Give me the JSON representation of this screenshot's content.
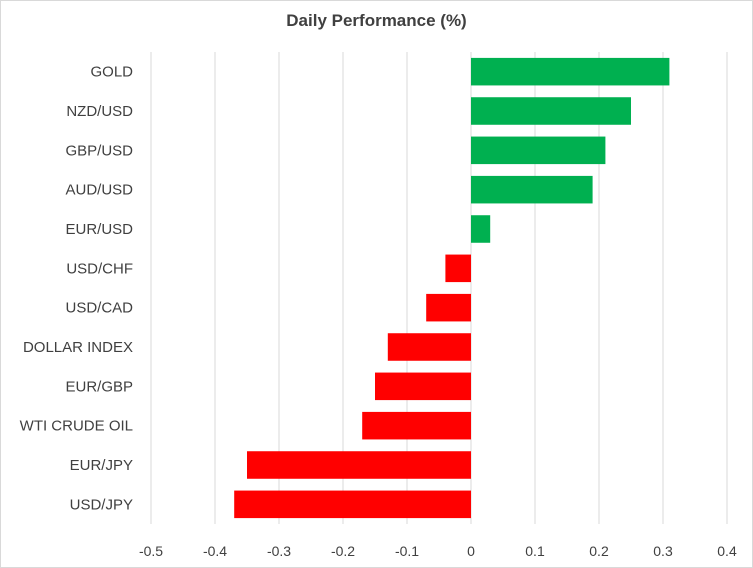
{
  "chart_data": {
    "type": "bar",
    "orientation": "horizontal",
    "title": "Daily Performance (%)",
    "xlabel": "",
    "ylabel": "",
    "xlim": [
      -0.5,
      0.4
    ],
    "x_ticks": [
      "-0.5",
      "-0.4",
      "-0.3",
      "-0.2",
      "-0.1",
      "0",
      "0.1",
      "0.2",
      "0.3",
      "0.4"
    ],
    "grid": "vertical",
    "legend": "none",
    "categories": [
      "GOLD",
      "NZD/USD",
      "GBP/USD",
      "AUD/USD",
      "EUR/USD",
      "USD/CHF",
      "USD/CAD",
      "DOLLAR INDEX",
      "EUR/GBP",
      "WTI CRUDE OIL",
      "EUR/JPY",
      "USD/JPY"
    ],
    "values": [
      0.31,
      0.25,
      0.21,
      0.19,
      0.03,
      -0.04,
      -0.07,
      -0.13,
      -0.15,
      -0.17,
      -0.35,
      -0.37
    ],
    "colors": {
      "positive": "#00b050",
      "negative": "#ff0000",
      "grid": "#d9d9d9",
      "text": "#404040"
    }
  }
}
